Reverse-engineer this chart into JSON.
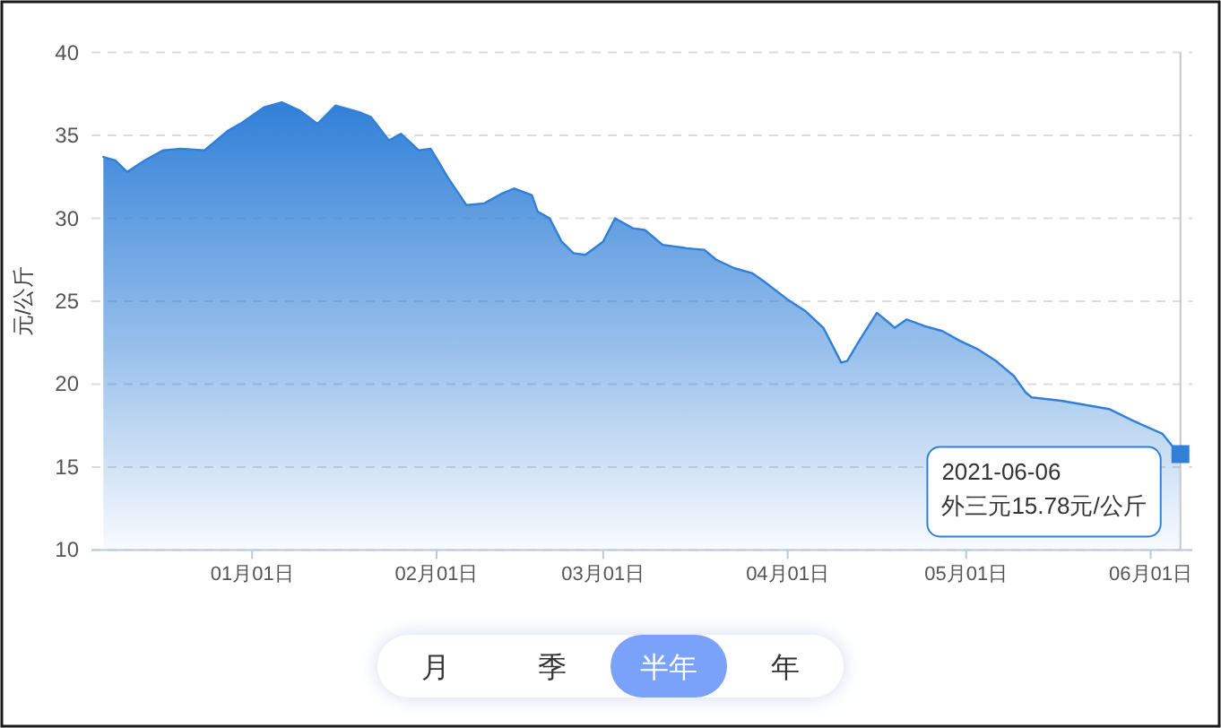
{
  "chart_data": {
    "type": "area",
    "ylabel": "元/公斤",
    "color": "#3180d8",
    "grid": "y",
    "xlim": [
      "2020-12-05",
      "2021-06-08"
    ],
    "ylim": [
      10,
      40
    ],
    "yticks": [
      10,
      15,
      20,
      25,
      30,
      35,
      40
    ],
    "xticks": [
      {
        "value": "2021-01-01",
        "label": "01月01日"
      },
      {
        "value": "2021-02-01",
        "label": "02月01日"
      },
      {
        "value": "2021-03-01",
        "label": "03月01日"
      },
      {
        "value": "2021-04-01",
        "label": "04月01日"
      },
      {
        "value": "2021-05-01",
        "label": "05月01日"
      },
      {
        "value": "2021-06-01",
        "label": "06月01日"
      }
    ],
    "x": [
      "2020-12-07",
      "2020-12-09",
      "2020-12-11",
      "2020-12-14",
      "2020-12-17",
      "2020-12-20",
      "2020-12-24",
      "2020-12-28",
      "2020-12-30",
      "2021-01-03",
      "2021-01-06",
      "2021-01-09",
      "2021-01-12",
      "2021-01-15",
      "2021-01-19",
      "2021-01-21",
      "2021-01-24",
      "2021-01-26",
      "2021-01-29",
      "2021-01-31",
      "2021-02-01",
      "2021-02-03",
      "2021-02-06",
      "2021-02-09",
      "2021-02-12",
      "2021-02-14",
      "2021-02-17",
      "2021-02-18",
      "2021-02-20",
      "2021-02-22",
      "2021-02-24",
      "2021-02-26",
      "2021-03-01",
      "2021-03-03",
      "2021-03-06",
      "2021-03-08",
      "2021-03-11",
      "2021-03-15",
      "2021-03-18",
      "2021-03-20",
      "2021-03-23",
      "2021-03-26",
      "2021-03-28",
      "2021-04-01",
      "2021-04-04",
      "2021-04-07",
      "2021-04-10",
      "2021-04-11",
      "2021-04-13",
      "2021-04-16",
      "2021-04-18",
      "2021-04-19",
      "2021-04-21",
      "2021-04-24",
      "2021-04-27",
      "2021-04-30",
      "2021-05-03",
      "2021-05-06",
      "2021-05-09",
      "2021-05-11",
      "2021-05-12",
      "2021-05-17",
      "2021-05-25",
      "2021-05-29",
      "2021-06-03",
      "2021-06-05",
      "2021-06-06"
    ],
    "values": [
      33.7,
      33.5,
      32.8,
      33.5,
      34.1,
      34.2,
      34.1,
      35.3,
      35.7,
      36.7,
      37.0,
      36.5,
      35.7,
      36.8,
      36.4,
      36.1,
      34.7,
      35.1,
      34.1,
      34.2,
      33.6,
      32.4,
      30.8,
      30.9,
      31.5,
      31.8,
      31.4,
      30.4,
      30.0,
      28.6,
      27.9,
      27.8,
      28.6,
      30.0,
      29.4,
      29.3,
      28.4,
      28.2,
      28.1,
      27.5,
      27.0,
      26.7,
      26.2,
      25.1,
      24.4,
      23.4,
      21.3,
      21.4,
      22.6,
      24.3,
      23.7,
      23.4,
      23.9,
      23.5,
      23.2,
      22.6,
      22.1,
      21.4,
      20.5,
      19.5,
      19.2,
      19.0,
      18.5,
      17.8,
      17.0,
      16.1,
      15.78
    ],
    "ref_lines": [
      {
        "axis": "x",
        "value": "2021-06-06",
        "color": "#c8c8c8"
      }
    ],
    "annotations": [
      {
        "text": "2021-06-06\n外三元15.78元/公斤",
        "x": "2021-06-06",
        "y": 15.78
      },
      "月",
      "季",
      "半年",
      "年"
    ]
  }
}
